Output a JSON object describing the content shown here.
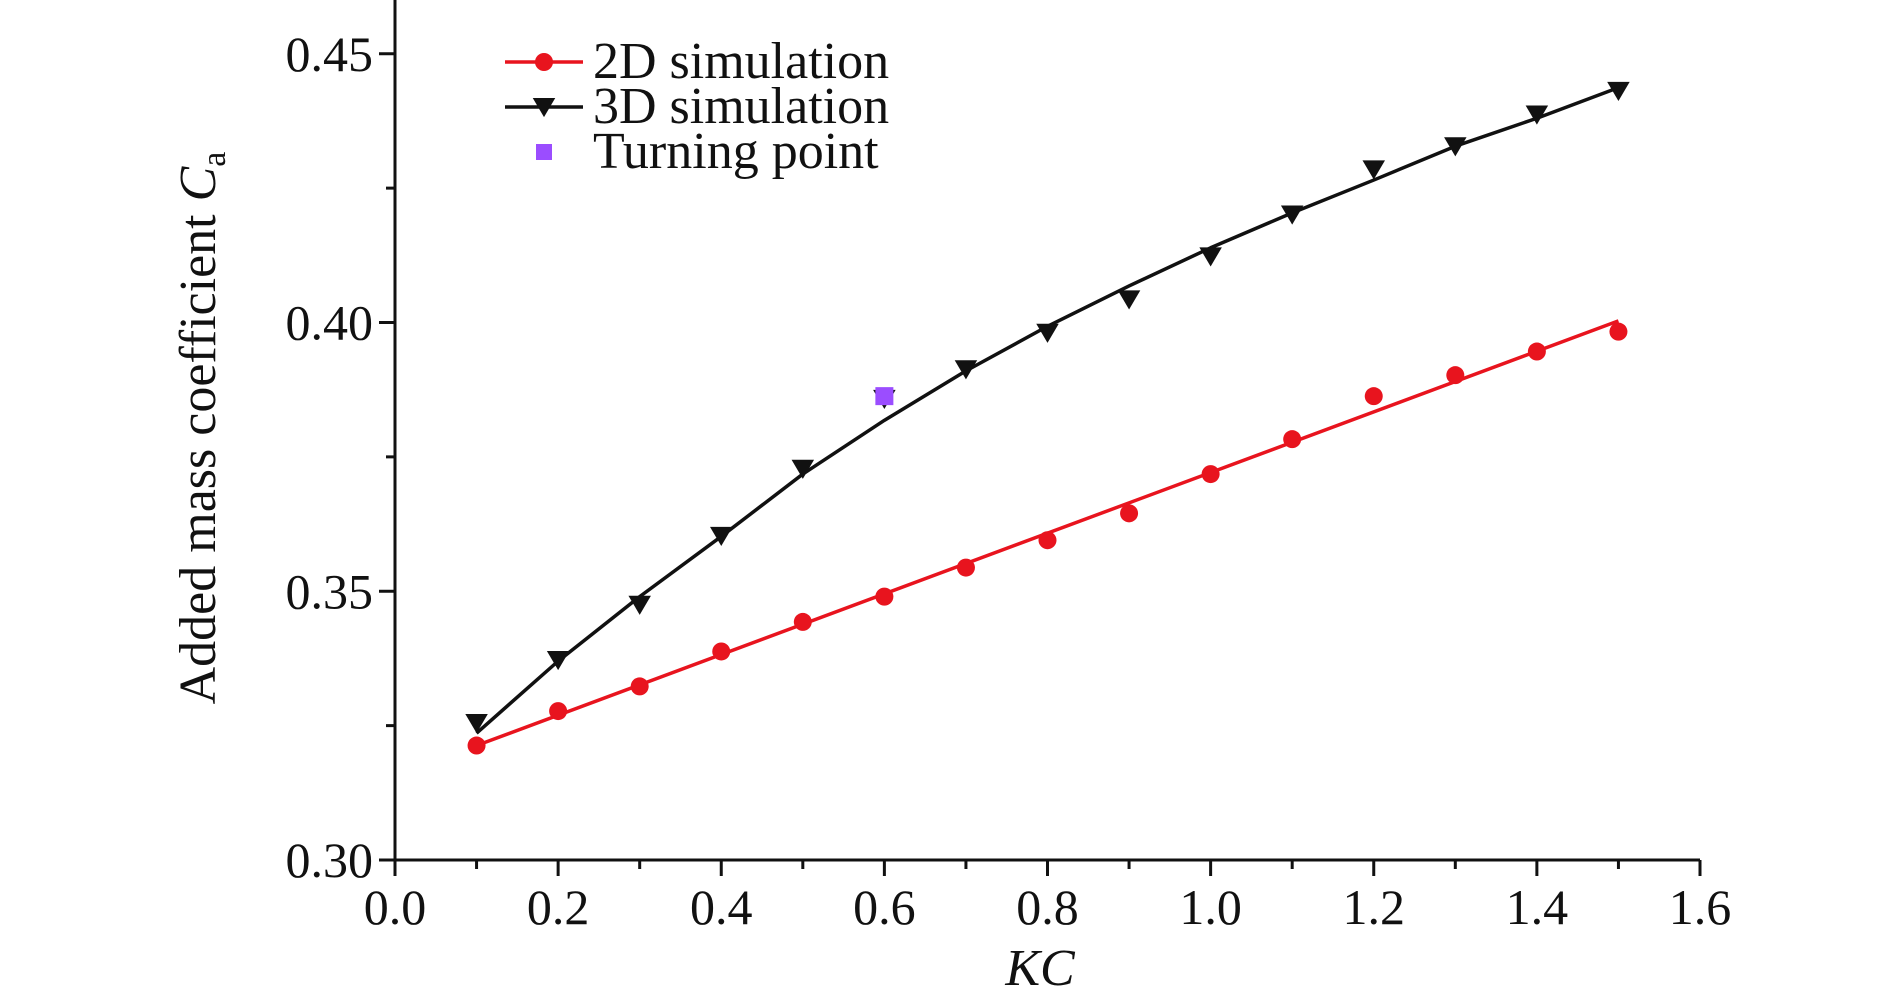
{
  "chart_data": {
    "type": "scatter",
    "xlabel": "KC",
    "ylabel": "Added mass coefficient C",
    "ylabel_subscript": "a",
    "xlim": [
      0.0,
      1.6
    ],
    "ylim": [
      0.3,
      0.46
    ],
    "xticks": [
      "0.0",
      "0.2",
      "0.4",
      "0.6",
      "0.8",
      "1.0",
      "1.2",
      "1.4",
      "1.6"
    ],
    "yticks": [
      "0.30",
      "0.35",
      "0.40",
      "0.45"
    ],
    "grid": false,
    "legend_position": "top-left",
    "series": [
      {
        "name": "2D simulation",
        "color": "#e8141e",
        "marker": "circle",
        "x": [
          0.1,
          0.2,
          0.3,
          0.4,
          0.5,
          0.6,
          0.7,
          0.8,
          0.9,
          1.0,
          1.1,
          1.2,
          1.3,
          1.4,
          1.5
        ],
        "y": [
          0.3213,
          0.3277,
          0.3323,
          0.3388,
          0.3443,
          0.349,
          0.3544,
          0.3595,
          0.3645,
          0.3718,
          0.3783,
          0.3863,
          0.3902,
          0.3946,
          0.3983
        ],
        "fit": {
          "type": "linear",
          "x": [
            0.1,
            1.5
          ],
          "y": [
            0.3213,
            0.4003
          ]
        }
      },
      {
        "name": "3D simulation",
        "color": "#111111",
        "marker": "triangle-down",
        "x": [
          0.1,
          0.2,
          0.3,
          0.4,
          0.5,
          0.6,
          0.7,
          0.8,
          0.9,
          1.0,
          1.1,
          1.2,
          1.3,
          1.4,
          1.5
        ],
        "y": [
          0.3255,
          0.3372,
          0.3475,
          0.3603,
          0.3728,
          0.3858,
          0.3913,
          0.3981,
          0.4043,
          0.4123,
          0.4201,
          0.4285,
          0.4328,
          0.4387,
          0.4431
        ],
        "fit": {
          "type": "curve",
          "x": [
            0.1,
            0.2,
            0.3,
            0.4,
            0.5,
            0.6,
            0.7,
            0.8,
            0.9,
            1.0,
            1.1,
            1.2,
            1.3,
            1.4,
            1.5
          ],
          "y": [
            0.3236,
            0.337,
            0.349,
            0.3602,
            0.3718,
            0.3818,
            0.391,
            0.3993,
            0.4068,
            0.4139,
            0.4204,
            0.4265,
            0.4328,
            0.438,
            0.4437
          ]
        }
      },
      {
        "name": "Turning point",
        "color": "#9b4dff",
        "marker": "square",
        "x": [
          0.6
        ],
        "y": [
          0.3863
        ]
      }
    ]
  }
}
